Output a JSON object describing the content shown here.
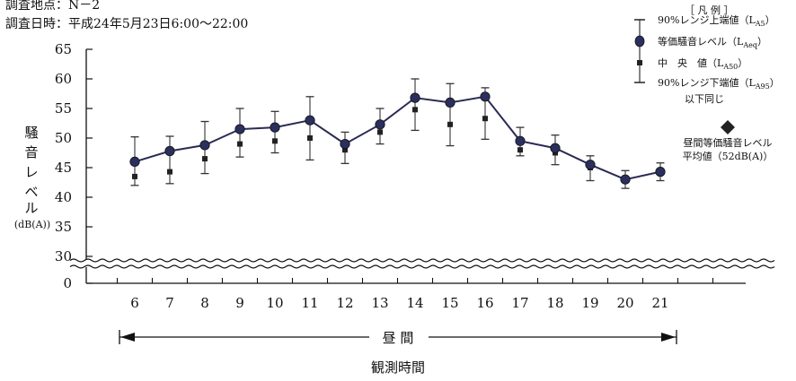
{
  "header": {
    "location_label": "調査地点：N－2",
    "datetime_label": "調査日時：平成24年5月23日6:00～22:00"
  },
  "chart_data": {
    "type": "line",
    "xlabel": "観測時間",
    "ylabel_chars": [
      "騒",
      "音",
      "レ",
      "ベ",
      "ル"
    ],
    "ylabel_unit": "(dB(A))",
    "y_ticks": [
      "65",
      "60",
      "55",
      "50",
      "45",
      "40",
      "35",
      "30",
      "0"
    ],
    "ylim": [
      30,
      65
    ],
    "y_axis_break": true,
    "categories": [
      "6",
      "7",
      "8",
      "9",
      "10",
      "11",
      "12",
      "13",
      "14",
      "15",
      "16",
      "17",
      "18",
      "19",
      "20",
      "21"
    ],
    "period_label": "昼 間",
    "series": [
      {
        "name": "90%レンジ上端値(LA5)",
        "values": [
          50.2,
          50.3,
          52.8,
          55.0,
          54.5,
          57.0,
          51.0,
          55.0,
          60.0,
          59.2,
          58.5,
          51.8,
          50.5,
          47.0,
          44.5,
          45.8
        ]
      },
      {
        "name": "等価騒音レベル(LAeq)",
        "values": [
          46.0,
          47.8,
          48.8,
          51.5,
          51.8,
          53.0,
          49.0,
          52.3,
          56.8,
          56.0,
          57.0,
          49.5,
          48.3,
          45.5,
          43.0,
          44.3
        ]
      },
      {
        "name": "中央値(LA50)",
        "values": [
          43.5,
          44.3,
          46.5,
          49.0,
          49.5,
          50.0,
          48.0,
          51.0,
          54.8,
          52.3,
          53.3,
          48.0,
          47.5,
          45.0,
          null,
          null
        ]
      },
      {
        "name": "90%レンジ下端値(LA95)",
        "values": [
          42.0,
          42.3,
          44.0,
          46.8,
          47.5,
          46.3,
          45.7,
          49.0,
          51.3,
          48.7,
          49.8,
          47.0,
          45.5,
          42.8,
          41.5,
          42.8
        ]
      }
    ],
    "reference": {
      "label_lines": [
        "昼間等価騒音レベル",
        "平均値（52dB(A)）"
      ],
      "value": 52
    },
    "legend": {
      "title": "［ 凡 例 ］",
      "items": [
        {
          "text": "90%レンジ上端値（L",
          "sub": "A5",
          "close": "）"
        },
        {
          "text": "等価騒音レベル（L",
          "sub": "Aeq",
          "close": "）"
        },
        {
          "text": "中　央　値（L",
          "sub": "A50",
          "close": "）"
        },
        {
          "text": "90%レンジ下端値（L",
          "sub": "A95",
          "close": "）"
        }
      ],
      "note": "以下同じ",
      "placement": "top-right"
    },
    "colors": {
      "line": "#2b2b55",
      "marker": "#2b2f5e",
      "median": "#222222",
      "axis": "#111111",
      "reference": "#222222"
    }
  }
}
